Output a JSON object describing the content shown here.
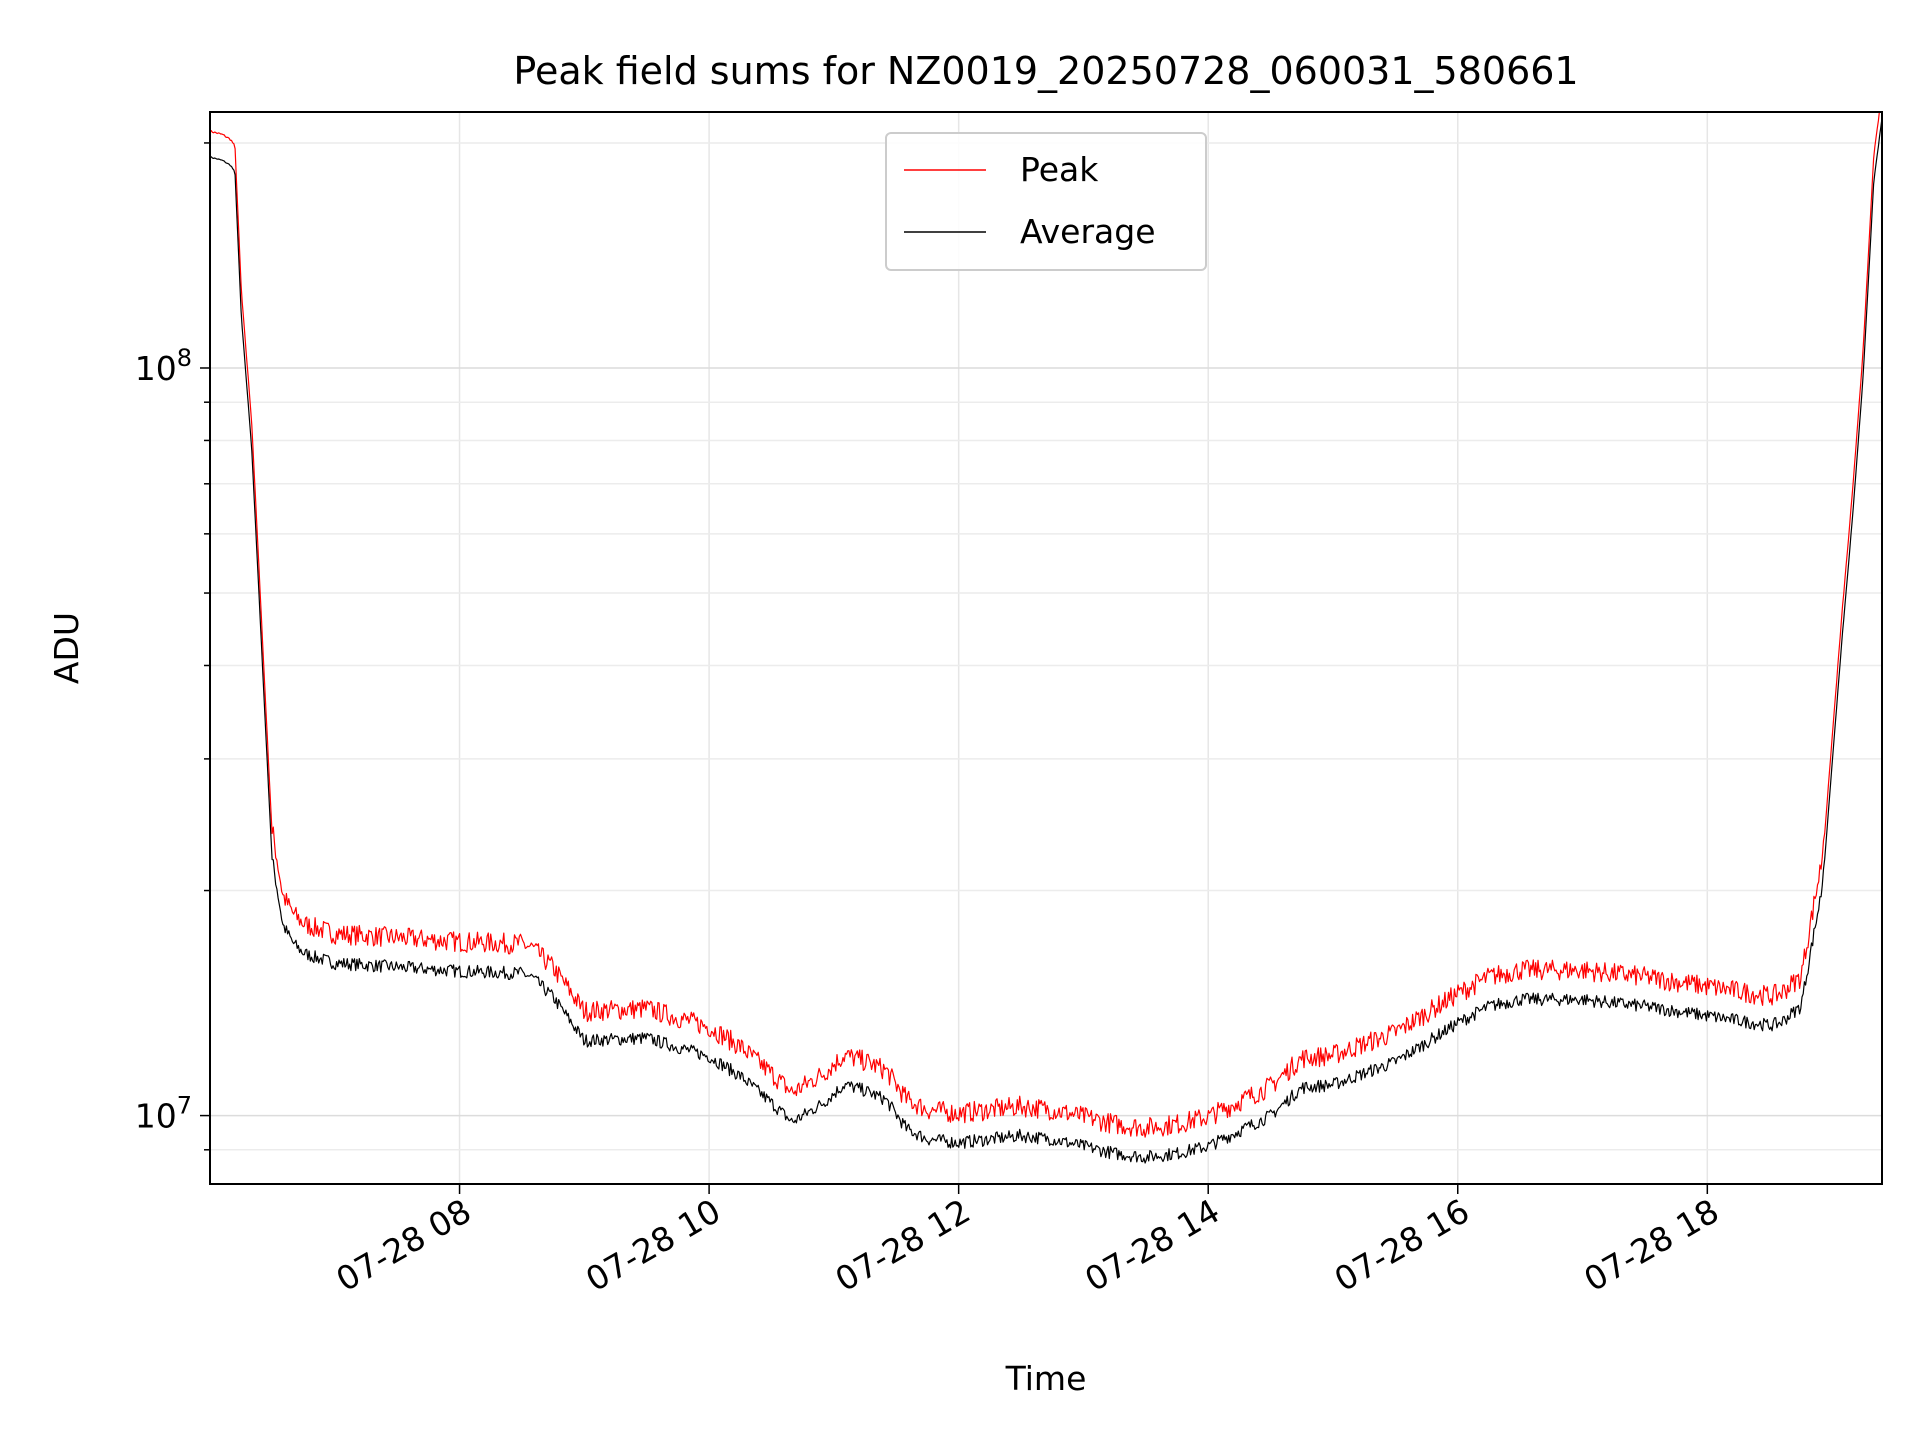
{
  "chart_data": {
    "type": "line",
    "title": "Peak field sums for NZ0019_20250728_060031_580661",
    "xlabel": "Time",
    "ylabel": "ADU",
    "y_scale": "log",
    "ylim": [
      8100000,
      220000000
    ],
    "xlim": [
      "2025-07-28T06:00",
      "2025-07-28T19:24"
    ],
    "grid": true,
    "legend_position": "upper center",
    "y_major_ticks": [
      {
        "value": 10000000,
        "mantissa": "10",
        "exponent": "7"
      },
      {
        "value": 100000000,
        "mantissa": "10",
        "exponent": "8"
      }
    ],
    "x_ticks": [
      {
        "value": "2025-07-28T08:00",
        "label": "07-28 08"
      },
      {
        "value": "2025-07-28T10:00",
        "label": "07-28 10"
      },
      {
        "value": "2025-07-28T12:00",
        "label": "07-28 12"
      },
      {
        "value": "2025-07-28T14:00",
        "label": "07-28 14"
      },
      {
        "value": "2025-07-28T16:00",
        "label": "07-28 16"
      },
      {
        "value": "2025-07-28T18:00",
        "label": "07-28 18"
      }
    ],
    "series": [
      {
        "name": "Peak",
        "color": "#ff0000",
        "offset_ratio": 1.06
      },
      {
        "name": "Average",
        "color": "#000000",
        "offset_ratio": 1.0
      }
    ],
    "x": [
      "2025-07-28T06:00",
      "2025-07-28T06:06",
      "2025-07-28T06:10",
      "2025-07-28T06:12",
      "2025-07-28T06:15",
      "2025-07-28T06:20",
      "2025-07-28T06:25",
      "2025-07-28T06:30",
      "2025-07-28T06:35",
      "2025-07-28T06:40",
      "2025-07-28T06:45",
      "2025-07-28T06:50",
      "2025-07-28T07:00",
      "2025-07-28T07:30",
      "2025-07-28T08:00",
      "2025-07-28T08:30",
      "2025-07-28T08:35",
      "2025-07-28T08:45",
      "2025-07-28T09:00",
      "2025-07-28T09:30",
      "2025-07-28T10:00",
      "2025-07-28T10:15",
      "2025-07-28T10:30",
      "2025-07-28T10:40",
      "2025-07-28T10:55",
      "2025-07-28T11:05",
      "2025-07-28T11:15",
      "2025-07-28T11:25",
      "2025-07-28T11:35",
      "2025-07-28T11:45",
      "2025-07-28T12:00",
      "2025-07-28T12:15",
      "2025-07-28T12:30",
      "2025-07-28T12:45",
      "2025-07-28T13:00",
      "2025-07-28T13:15",
      "2025-07-28T13:30",
      "2025-07-28T13:45",
      "2025-07-28T14:00",
      "2025-07-28T14:30",
      "2025-07-28T14:45",
      "2025-07-28T15:00",
      "2025-07-28T15:30",
      "2025-07-28T16:00",
      "2025-07-28T16:15",
      "2025-07-28T16:30",
      "2025-07-28T17:00",
      "2025-07-28T17:30",
      "2025-07-28T18:00",
      "2025-07-28T18:15",
      "2025-07-28T18:30",
      "2025-07-28T18:35",
      "2025-07-28T18:45",
      "2025-07-28T18:55",
      "2025-07-28T19:00",
      "2025-07-28T19:05",
      "2025-07-28T19:10",
      "2025-07-28T19:15",
      "2025-07-28T19:20",
      "2025-07-28T19:24"
    ],
    "average_values": [
      195000000,
      193000000,
      190000000,
      186000000,
      120000000,
      80000000,
      42000000,
      22000000,
      18000000,
      17000000,
      16500000,
      16300000,
      16000000,
      15800000,
      15600000,
      15500000,
      15300000,
      14400000,
      12600000,
      12700000,
      12000000,
      11300000,
      10400000,
      9800000,
      10400000,
      11000000,
      10800000,
      10500000,
      9600000,
      9300000,
      9200000,
      9300000,
      9400000,
      9300000,
      9100000,
      8900000,
      8800000,
      8900000,
      9100000,
      10000000,
      10900000,
      11000000,
      11800000,
      13300000,
      14000000,
      14300000,
      14300000,
      14000000,
      13600000,
      13400000,
      13200000,
      13300000,
      14000000,
      20000000,
      30000000,
      45000000,
      65000000,
      100000000,
      180000000,
      220000000
    ]
  }
}
